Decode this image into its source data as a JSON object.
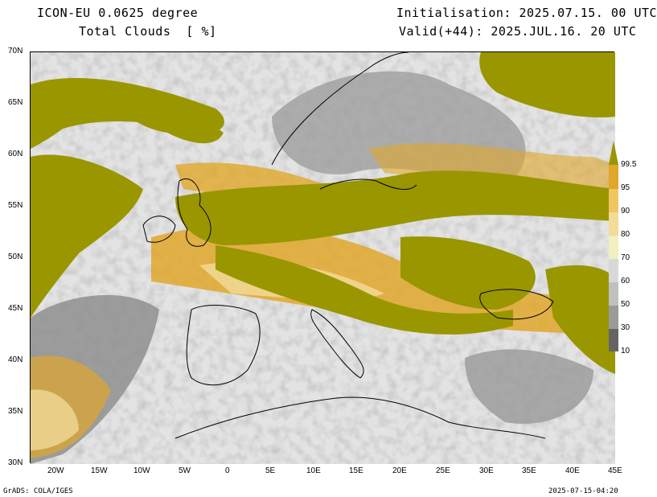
{
  "header": {
    "model": "ICON-EU 0.0625 degree",
    "field": "Total Clouds  [ %]",
    "init": "Initialisation: 2025.07.15. 00 UTC",
    "valid": "Valid(+44): 2025.JUL.16. 20 UTC"
  },
  "axes": {
    "lat_labels": [
      "70N",
      "65N",
      "60N",
      "55N",
      "50N",
      "45N",
      "40N",
      "35N",
      "30N"
    ],
    "lon_labels": [
      "20W",
      "15W",
      "10W",
      "5W",
      "0",
      "5E",
      "10E",
      "15E",
      "20E",
      "25E",
      "30E",
      "35E",
      "40E",
      "45E"
    ]
  },
  "legend": {
    "labels": [
      "99.5",
      "95",
      "90",
      "80",
      "70",
      "60",
      "50",
      "30",
      "10"
    ],
    "colors": [
      "#9a9600",
      "#e0a72b",
      "#f0c660",
      "#f2dc9a",
      "#f0f0c0",
      "#c8c8c8",
      "#a8a8a8",
      "#888888",
      "#646464"
    ]
  },
  "footer": {
    "left": "GrADS: COLA/IGES",
    "right": "2025-07-15-04:20"
  },
  "colors": {
    "olive": "#9a9600",
    "orange": "#e0a72b",
    "light": "#f2dc9a",
    "gray": "#a8a8a8",
    "darkgray": "#777777",
    "bg": "#e3e3e3"
  }
}
